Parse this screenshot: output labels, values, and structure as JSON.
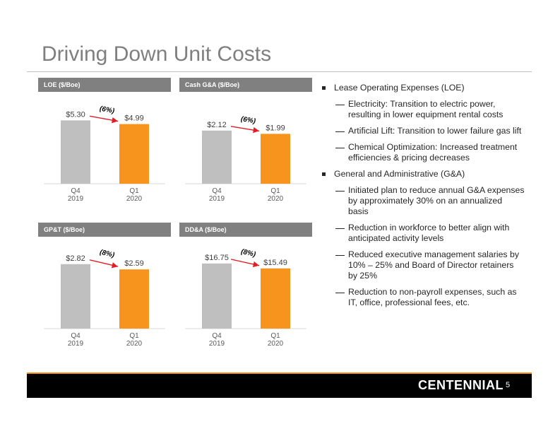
{
  "slide": {
    "title": "Driving Down Unit Costs",
    "page_number": "5",
    "logo_text": "CENTENNIAL"
  },
  "colors": {
    "prior_bar": "#bfbfbf",
    "current_bar": "#f7941d",
    "arrow": "#e31b23",
    "header_bg": "#808080",
    "title": "#7f7f7f"
  },
  "chart_data": [
    {
      "type": "bar",
      "title": "LOE ($/Boe)",
      "categories": [
        "Q4\n2019",
        "Q1\n2020"
      ],
      "values": [
        5.3,
        4.99
      ],
      "value_labels": [
        "$5.30",
        "$4.99"
      ],
      "change_label": "(6%)",
      "ylim": [
        0,
        6.5
      ]
    },
    {
      "type": "bar",
      "title": "Cash G&A ($/Boe)",
      "categories": [
        "Q4\n2019",
        "Q1\n2020"
      ],
      "values": [
        2.12,
        1.99
      ],
      "value_labels": [
        "$2.12",
        "$1.99"
      ],
      "change_label": "(6%)",
      "ylim": [
        0,
        3.1
      ]
    },
    {
      "type": "bar",
      "title": "GP&T ($/Boe)",
      "categories": [
        "Q4\n2019",
        "Q1\n2020"
      ],
      "values": [
        2.82,
        2.59
      ],
      "value_labels": [
        "$2.82",
        "$2.59"
      ],
      "change_label": "(8%)",
      "ylim": [
        0,
        3.4
      ]
    },
    {
      "type": "bar",
      "title": "DD&A ($/Boe)",
      "categories": [
        "Q4\n2019",
        "Q1\n2020"
      ],
      "values": [
        16.75,
        15.49
      ],
      "value_labels": [
        "$16.75",
        "$15.49"
      ],
      "change_label": "(8%)",
      "ylim": [
        0,
        20
      ]
    }
  ],
  "bullets": [
    {
      "text": "Lease Operating Expenses (LOE)",
      "subs": [
        "Electricity: Transition to electric power, resulting in lower equipment rental costs",
        "Artificial Lift: Transition to lower failure gas lift",
        "Chemical Optimization: Increased treatment efficiencies & pricing decreases"
      ]
    },
    {
      "text": "General and Administrative (G&A)",
      "subs": [
        "Initiated plan to reduce annual G&A expenses by approximately 30% on an annualized basis",
        "Reduction in workforce to better align with anticipated activity levels",
        "Reduced executive management salaries by 10% – 25% and Board of Director retainers by 25%",
        "Reduction to non-payroll expenses, such as IT, office, professional fees, etc."
      ]
    }
  ]
}
